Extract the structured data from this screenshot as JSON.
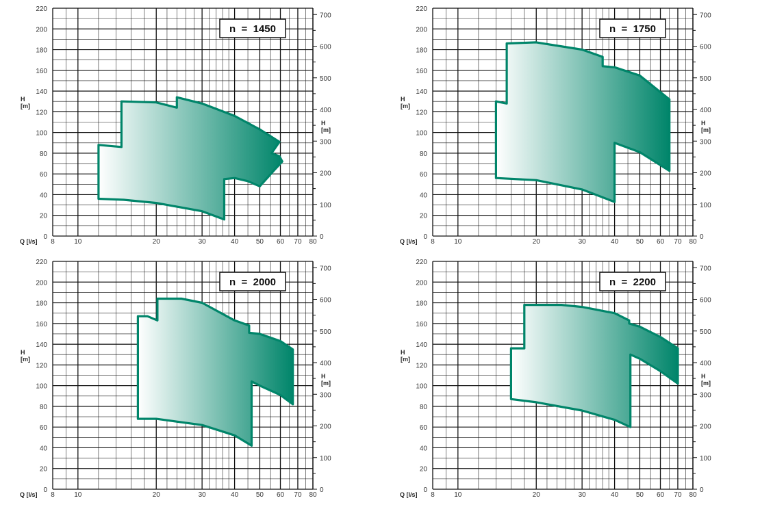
{
  "chart_data": [
    {
      "type": "area",
      "speed_label": "n  =  1450",
      "x_label": "Q [l/s]",
      "y_left_label": [
        "H",
        "[m]"
      ],
      "y_right_label": [
        "H",
        "[m]"
      ],
      "x_scale": "log",
      "xlim": [
        8,
        80
      ],
      "ylim_left": [
        0,
        220
      ],
      "ylim_right": [
        0,
        720
      ],
      "x_ticks": [
        "8",
        "10",
        "20",
        "30",
        "40",
        "50",
        "60",
        "70",
        "80"
      ],
      "y_left_ticks": [
        "0",
        "20",
        "40",
        "60",
        "80",
        "100",
        "120",
        "140",
        "160",
        "180",
        "200",
        "220"
      ],
      "y_right_ticks": [
        "0",
        "100",
        "200",
        "300",
        "400",
        "500",
        "600",
        "700"
      ],
      "envelope": [
        [
          12,
          36
        ],
        [
          12,
          88
        ],
        [
          14.7,
          86
        ],
        [
          14.7,
          130
        ],
        [
          20,
          129
        ],
        [
          24,
          124
        ],
        [
          24,
          134
        ],
        [
          30,
          128
        ],
        [
          40,
          116
        ],
        [
          50,
          103
        ],
        [
          59.5,
          91
        ],
        [
          55.5,
          80
        ],
        [
          59.5,
          77
        ],
        [
          61,
          72
        ],
        [
          57,
          64
        ],
        [
          50,
          48
        ],
        [
          45,
          53
        ],
        [
          40,
          56
        ],
        [
          36.5,
          55
        ],
        [
          36.5,
          16
        ],
        [
          30,
          24
        ],
        [
          20,
          32
        ],
        [
          15,
          35
        ],
        [
          12,
          36
        ]
      ],
      "color_light": "#ffffff",
      "color_dark": "#00856a"
    },
    {
      "type": "area",
      "speed_label": "n  =  1750",
      "x_label": "Q [l/s]",
      "y_left_label": [
        "H",
        "[m]"
      ],
      "y_right_label": [
        "H",
        "[m]"
      ],
      "x_scale": "log",
      "xlim": [
        8,
        80
      ],
      "ylim_left": [
        0,
        220
      ],
      "ylim_right": [
        0,
        720
      ],
      "x_ticks": [
        "8",
        "10",
        "20",
        "30",
        "40",
        "50",
        "60",
        "70",
        "80"
      ],
      "y_left_ticks": [
        "0",
        "20",
        "40",
        "60",
        "80",
        "100",
        "120",
        "140",
        "160",
        "180",
        "200",
        "220"
      ],
      "y_right_ticks": [
        "0",
        "100",
        "200",
        "300",
        "400",
        "500",
        "600",
        "700"
      ],
      "envelope": [
        [
          14,
          56
        ],
        [
          14,
          130
        ],
        [
          15.4,
          128
        ],
        [
          15.4,
          186
        ],
        [
          20,
          187
        ],
        [
          30,
          180
        ],
        [
          36,
          173
        ],
        [
          36,
          164
        ],
        [
          40,
          163
        ],
        [
          50,
          155
        ],
        [
          65,
          132
        ],
        [
          65,
          63
        ],
        [
          50,
          81
        ],
        [
          40,
          90
        ],
        [
          40,
          33
        ],
        [
          30,
          45
        ],
        [
          20,
          54
        ],
        [
          14,
          56
        ]
      ],
      "color_light": "#ffffff",
      "color_dark": "#00856a"
    },
    {
      "type": "area",
      "speed_label": "n  =  2000",
      "x_label": "Q [l/s]",
      "y_left_label": [
        "H",
        "[m]"
      ],
      "y_right_label": [
        "H",
        "[m]"
      ],
      "x_scale": "log",
      "xlim": [
        8,
        80
      ],
      "ylim_left": [
        0,
        220
      ],
      "ylim_right": [
        0,
        720
      ],
      "x_ticks": [
        "8",
        "10",
        "20",
        "30",
        "40",
        "50",
        "60",
        "70",
        "80"
      ],
      "y_left_ticks": [
        "0",
        "20",
        "40",
        "60",
        "80",
        "100",
        "120",
        "140",
        "160",
        "180",
        "200",
        "220"
      ],
      "y_right_ticks": [
        "0",
        "100",
        "200",
        "300",
        "400",
        "500",
        "600",
        "700"
      ],
      "envelope": [
        [
          17,
          68
        ],
        [
          17,
          167
        ],
        [
          18.5,
          167
        ],
        [
          20.2,
          163
        ],
        [
          20.2,
          184
        ],
        [
          25,
          184
        ],
        [
          30,
          180
        ],
        [
          40,
          163
        ],
        [
          45.5,
          158
        ],
        [
          45.5,
          151
        ],
        [
          50,
          150
        ],
        [
          60,
          143
        ],
        [
          67,
          135
        ],
        [
          67,
          82
        ],
        [
          60,
          91
        ],
        [
          50,
          100
        ],
        [
          46.5,
          104
        ],
        [
          46.5,
          42
        ],
        [
          40,
          52
        ],
        [
          30,
          62
        ],
        [
          20,
          68
        ],
        [
          17,
          68
        ]
      ],
      "color_light": "#ffffff",
      "color_dark": "#00856a"
    },
    {
      "type": "area",
      "speed_label": "n  =  2200",
      "x_label": "Q [l/s]",
      "y_left_label": [
        "H",
        "[m]"
      ],
      "y_right_label": [
        "H",
        "[m]"
      ],
      "x_scale": "log",
      "xlim": [
        8,
        80
      ],
      "ylim_left": [
        0,
        220
      ],
      "ylim_right": [
        0,
        720
      ],
      "x_ticks": [
        "8",
        "10",
        "20",
        "30",
        "40",
        "50",
        "60",
        "70",
        "80"
      ],
      "y_left_ticks": [
        "0",
        "20",
        "40",
        "60",
        "80",
        "100",
        "120",
        "140",
        "160",
        "180",
        "200",
        "220"
      ],
      "y_right_ticks": [
        "0",
        "100",
        "200",
        "300",
        "400",
        "500",
        "600",
        "700"
      ],
      "envelope": [
        [
          16,
          87
        ],
        [
          16,
          136
        ],
        [
          18,
          136
        ],
        [
          18,
          178
        ],
        [
          25,
          178
        ],
        [
          30,
          176
        ],
        [
          40,
          170
        ],
        [
          45.5,
          163
        ],
        [
          45.5,
          160
        ],
        [
          50,
          157
        ],
        [
          60,
          147
        ],
        [
          70,
          136
        ],
        [
          70,
          102
        ],
        [
          60,
          114
        ],
        [
          50,
          126
        ],
        [
          46,
          130
        ],
        [
          46,
          60
        ],
        [
          40,
          67
        ],
        [
          30,
          76
        ],
        [
          20,
          84
        ],
        [
          16,
          87
        ]
      ],
      "color_light": "#ffffff",
      "color_dark": "#00856a"
    }
  ]
}
